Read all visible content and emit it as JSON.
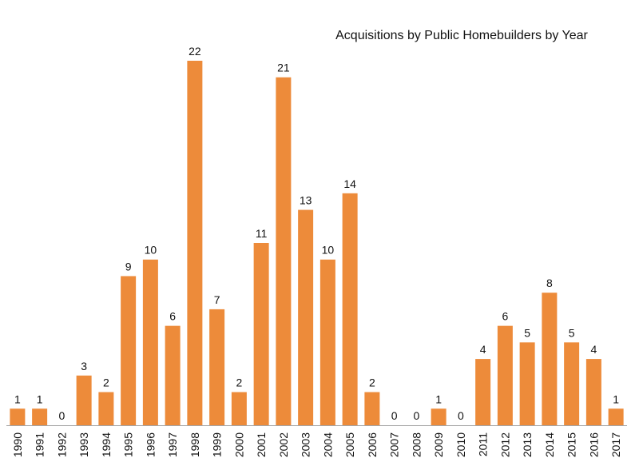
{
  "chart_data": {
    "type": "bar",
    "title": "Acquisitions by Public Homebuilders by Year",
    "xlabel": "",
    "ylabel": "",
    "categories": [
      "1990",
      "1991",
      "1992",
      "1993",
      "1994",
      "1995",
      "1996",
      "1997",
      "1998",
      "1999",
      "2000",
      "2001",
      "2002",
      "2003",
      "2004",
      "2005",
      "2006",
      "2007",
      "2008",
      "2009",
      "2010",
      "2011",
      "2012",
      "2013",
      "2014",
      "2015",
      "2016",
      "2017"
    ],
    "values": [
      1,
      1,
      0,
      3,
      2,
      9,
      10,
      6,
      22,
      7,
      2,
      11,
      21,
      13,
      10,
      14,
      2,
      0,
      0,
      1,
      0,
      4,
      6,
      5,
      8,
      5,
      4,
      1
    ],
    "ylim": [
      0,
      22
    ],
    "grid": false,
    "legend": "none",
    "bar_color": "#ED8B3A",
    "axis_color": "#A6A6A6"
  }
}
